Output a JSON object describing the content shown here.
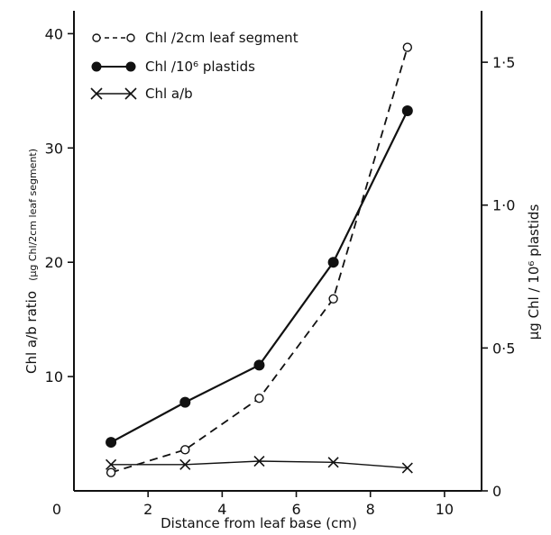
{
  "chart_data": {
    "type": "line",
    "x_axis": {
      "label": "Distance from leaf base  (cm)",
      "range": [
        0,
        11
      ],
      "ticks": [
        0,
        2,
        4,
        6,
        8,
        10
      ],
      "tick_labels": [
        "0",
        "2",
        "4",
        "6",
        "8",
        "10"
      ]
    },
    "y_left_axis": {
      "label_main": "Chl  a/b ratio",
      "label_units": "(μg Chl/2cm leaf segment)",
      "range": [
        0,
        42
      ],
      "ticks": [
        10,
        20,
        30,
        40
      ],
      "tick_labels": [
        "10",
        "20",
        "30",
        "40"
      ]
    },
    "y_right_axis": {
      "label": "μg Chl / 10⁶ plastids",
      "range": [
        0,
        1.68
      ],
      "ticks": [
        0,
        0.5,
        1.0,
        1.5
      ],
      "tick_labels": [
        "0",
        "0·5",
        "1·0",
        "1·5"
      ]
    },
    "series": [
      {
        "name": "Chl /2cm leaf segment",
        "axis": "left",
        "line": "dashed",
        "marker": "open-circle",
        "x": [
          1,
          3,
          5,
          7,
          9
        ],
        "y": [
          1.6,
          3.6,
          8.1,
          16.8,
          38.8
        ]
      },
      {
        "name": "Chl /10⁶ plastids",
        "axis": "right",
        "line": "solid",
        "marker": "filled-circle",
        "x": [
          1,
          3,
          5,
          7,
          9
        ],
        "y": [
          0.17,
          0.31,
          0.44,
          0.8,
          1.33
        ]
      },
      {
        "name": "Chl  a/b",
        "axis": "left",
        "line": "solid-thin",
        "marker": "cross",
        "x": [
          1,
          3,
          5,
          7,
          9
        ],
        "y": [
          2.3,
          2.3,
          2.6,
          2.5,
          2.0
        ]
      }
    ],
    "legend_position": "top-left",
    "grid": false
  }
}
